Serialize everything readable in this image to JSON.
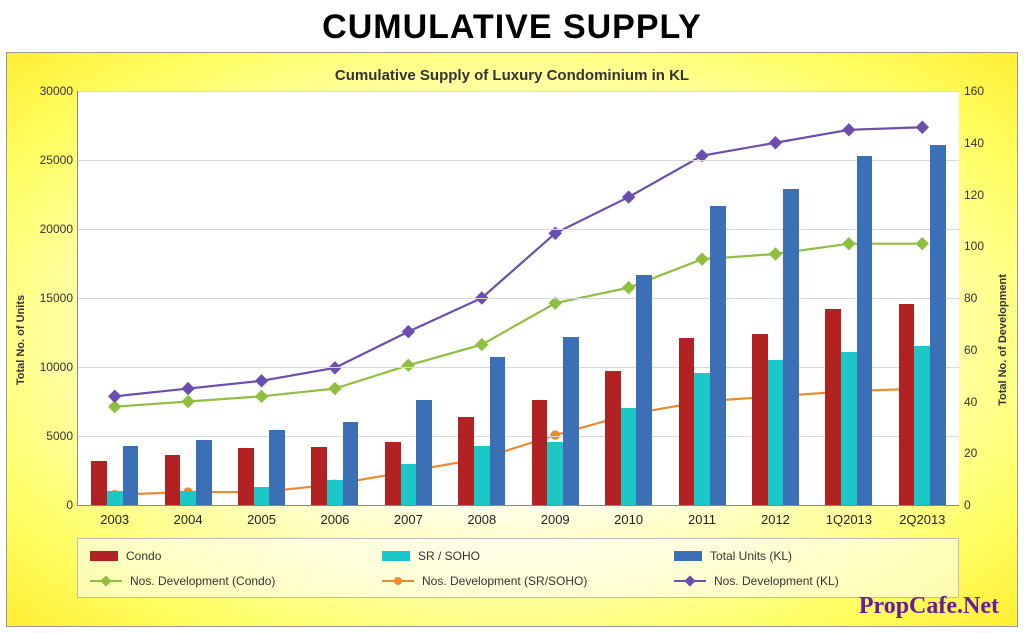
{
  "title": "CUMULATIVE SUPPLY",
  "chart": {
    "type": "bar+line",
    "subtitle": "Cumulative Supply of Luxury Condominium in KL",
    "categories": [
      "2003",
      "2004",
      "2005",
      "2006",
      "2007",
      "2008",
      "2009",
      "2010",
      "2011",
      "2012",
      "1Q2013",
      "2Q2013"
    ],
    "y_left": {
      "label": "Total No. of Units",
      "min": 0,
      "max": 30000,
      "step": 5000,
      "label_fontsize": 11
    },
    "y_right": {
      "label": "Total No. of Development",
      "min": 0,
      "max": 160,
      "step": 20,
      "label_fontsize": 11
    },
    "tick_fontsize": 12,
    "xlabel_fontsize": 13,
    "grid_color": "#d9d9d9",
    "plot_background": "#ffffff",
    "bar_series": [
      {
        "name": "Condo",
        "color": "#b22222",
        "values": [
          3200,
          3600,
          4100,
          4200,
          4600,
          6400,
          7600,
          9700,
          12100,
          12400,
          14200,
          14600
        ]
      },
      {
        "name": "SR / SOHO",
        "color": "#1cc7c7",
        "values": [
          1000,
          1000,
          1300,
          1800,
          3000,
          4300,
          4600,
          7000,
          9600,
          10500,
          11100,
          11500
        ]
      },
      {
        "name": "Total Units (KL)",
        "color": "#3b6fb6",
        "values": [
          4300,
          4700,
          5400,
          6000,
          7600,
          10700,
          12200,
          16700,
          21700,
          22900,
          25300,
          26100
        ]
      }
    ],
    "bar_group_width": 0.64,
    "line_series": [
      {
        "name": "Nos. Development (Condo)",
        "color": "#8fbf3f",
        "marker": "diamond",
        "values": [
          38,
          40,
          42,
          45,
          54,
          62,
          78,
          84,
          95,
          97,
          101,
          101
        ]
      },
      {
        "name": "Nos. Development (SR/SOHO)",
        "color": "#ee8a2e",
        "marker": "circle",
        "values": [
          4,
          5,
          5,
          8,
          13,
          18,
          27,
          35,
          40,
          42,
          44,
          45
        ]
      },
      {
        "name": "Nos. Development (KL)",
        "color": "#6a4fb0",
        "marker": "diamond",
        "values": [
          42,
          45,
          48,
          53,
          67,
          80,
          105,
          119,
          135,
          140,
          145,
          146
        ]
      }
    ],
    "line_width": 2.2
  },
  "watermark": "PropCafe.Net",
  "watermark_color": "#6a1b9a"
}
